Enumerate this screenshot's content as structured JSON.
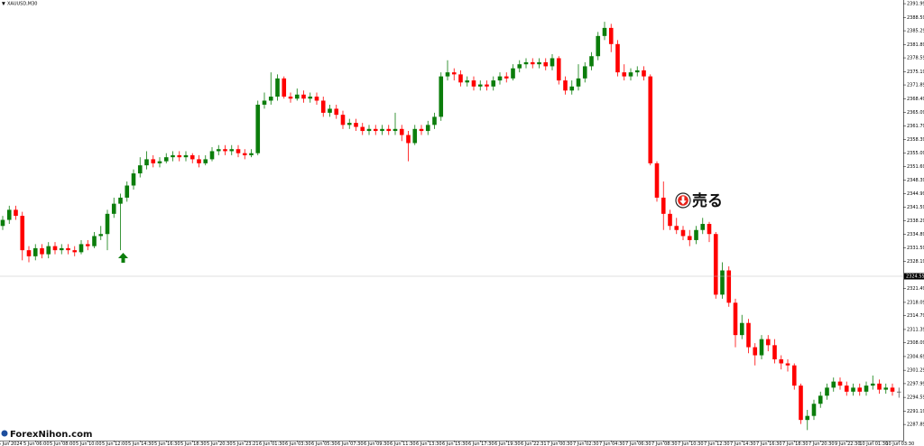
{
  "chart_data": {
    "type": "candlestick",
    "title": "XAUUSD,M30",
    "watermark": "ForexNihon.com",
    "annotation": "売る",
    "up_color": "#0b7d0b",
    "down_color": "#ff0000",
    "doji_color": "#555555",
    "ylim": [
      2283.9,
      2392.9
    ],
    "yticks": [
      {
        "value": 2391.99,
        "label": "2391.990"
      },
      {
        "value": 2388.59,
        "label": "2388.590"
      },
      {
        "value": 2385.29,
        "label": "2385.290"
      },
      {
        "value": 2381.89,
        "label": "2381.890"
      },
      {
        "value": 2378.59,
        "label": "2378.590"
      },
      {
        "value": 2375.19,
        "label": "2375.190"
      },
      {
        "value": 2371.89,
        "label": "2371.890"
      },
      {
        "value": 2368.49,
        "label": "2368.490"
      },
      {
        "value": 2365.09,
        "label": "2365.090"
      },
      {
        "value": 2361.79,
        "label": "2361.790"
      },
      {
        "value": 2358.39,
        "label": "2358.390"
      },
      {
        "value": 2355.09,
        "label": "2355.090"
      },
      {
        "value": 2351.69,
        "label": "2351.690"
      },
      {
        "value": 2348.39,
        "label": "2348.390"
      },
      {
        "value": 2344.99,
        "label": "2344.990"
      },
      {
        "value": 2341.59,
        "label": "2341.590"
      },
      {
        "value": 2338.29,
        "label": "2338.290"
      },
      {
        "value": 2334.89,
        "label": "2334.890"
      },
      {
        "value": 2331.59,
        "label": "2331.590"
      },
      {
        "value": 2328.19,
        "label": "2328.190"
      },
      {
        "value": 2321.49,
        "label": "2321.490"
      },
      {
        "value": 2318.09,
        "label": "2318.090"
      },
      {
        "value": 2314.79,
        "label": "2314.790"
      },
      {
        "value": 2311.39,
        "label": "2311.390"
      },
      {
        "value": 2308.09,
        "label": "2308.090"
      },
      {
        "value": 2304.69,
        "label": "2304.690"
      },
      {
        "value": 2301.29,
        "label": "2301.290"
      },
      {
        "value": 2297.99,
        "label": "2297.990"
      },
      {
        "value": 2294.59,
        "label": "2294.590"
      },
      {
        "value": 2291.19,
        "label": "2291.190"
      },
      {
        "value": 2287.89,
        "label": "2287.890"
      }
    ],
    "current_price": {
      "value": 2324.55,
      "label": "2324.550"
    },
    "categories": [
      null,
      "5 Jun 2024",
      null,
      null,
      null,
      "5 Jun 06:00",
      null,
      null,
      null,
      "5 Jun 08:00",
      null,
      null,
      null,
      "5 Jun 10:00",
      null,
      null,
      null,
      "5 Jun 12:00",
      null,
      null,
      null,
      "5 Jun 14:30",
      null,
      null,
      null,
      "5 Jun 16:30",
      null,
      null,
      null,
      "5 Jun 18:30",
      null,
      null,
      null,
      "5 Jun 20:30",
      null,
      null,
      null,
      "5 Jun 23:21",
      null,
      null,
      null,
      "6 Jun 01:30",
      null,
      null,
      null,
      "6 Jun 03:30",
      null,
      null,
      null,
      "6 Jun 05:30",
      null,
      null,
      null,
      "6 Jun 07:30",
      null,
      null,
      null,
      "6 Jun 09:30",
      null,
      null,
      null,
      "6 Jun 11:30",
      null,
      null,
      null,
      "6 Jun 13:30",
      null,
      null,
      null,
      "6 Jun 15:30",
      null,
      null,
      null,
      "6 Jun 17:30",
      null,
      null,
      null,
      "6 Jun 19:30",
      null,
      null,
      null,
      "6 Jun 22:31",
      null,
      null,
      null,
      "7 Jun 00:30",
      null,
      null,
      null,
      "7 Jun 02:30",
      null,
      null,
      null,
      "7 Jun 04:30",
      null,
      null,
      null,
      "7 Jun 06:30",
      null,
      null,
      null,
      "7 Jun 08:30",
      null,
      null,
      null,
      "7 Jun 10:30",
      null,
      null,
      null,
      "7 Jun 12:30",
      null,
      null,
      null,
      "7 Jun 14:30",
      null,
      null,
      null,
      "7 Jun 16:30",
      null,
      null,
      null,
      "7 Jun 18:30",
      null,
      null,
      null,
      "7 Jun 20:30",
      null,
      null,
      null,
      "9 Jun 22:30",
      null,
      null,
      null,
      "10 Jun 01:30",
      null,
      null,
      null,
      "10 Jun 03:30"
    ],
    "open": [
      2337,
      2338.5,
      2341,
      2339.5,
      2331,
      2329.5,
      2331.5,
      2330,
      2332,
      2331,
      2331.5,
      2331,
      2330.5,
      2332.5,
      2332,
      2334.5,
      2335,
      2340,
      2342.5,
      2344,
      2347,
      2350,
      2352,
      2353.5,
      2352.5,
      2353,
      2354,
      2354.5,
      2354,
      2354.5,
      2353.5,
      2352.5,
      2353.5,
      2355.5,
      2356,
      2355.5,
      2356,
      2355,
      2354.5,
      2355,
      2367,
      2368,
      2369,
      2373.5,
      2369,
      2368.5,
      2369.5,
      2368.5,
      2369,
      2368,
      2365,
      2366,
      2364.5,
      2362,
      2362.5,
      2361.5,
      2360.5,
      2361,
      2360.5,
      2361,
      2360.5,
      2361,
      2359.5,
      2357.5,
      2361,
      2360.5,
      2362,
      2364,
      2374,
      2375,
      2374.5,
      2372.5,
      2373,
      2371.5,
      2372,
      2371.5,
      2373,
      2374,
      2373.5,
      2376,
      2377,
      2377.5,
      2377,
      2377.5,
      2376.5,
      2378.5,
      2373,
      2370.5,
      2371.5,
      2373.5,
      2376.5,
      2379,
      2384,
      2386,
      2382,
      2375,
      2374,
      2375,
      2375.5,
      2374,
      2352.5,
      2344,
      2340,
      2337,
      2336,
      2334.5,
      2333.5,
      2336,
      2337.5,
      2335,
      2320,
      2326,
      2318,
      2310,
      2313,
      2307,
      2305,
      2309,
      2307.5,
      2304,
      2303,
      2302.5,
      2297.5,
      2289,
      2290,
      2293,
      2295,
      2297,
      2298.5,
      2297.5,
      2296,
      2297,
      2296,
      2297.5,
      2298,
      2296.5,
      2297,
      2296
    ],
    "high": [
      2339.5,
      2342,
      2342,
      2340.5,
      2332,
      2332.5,
      2332.5,
      2333,
      2333,
      2332.5,
      2332.5,
      2332,
      2333.5,
      2333.5,
      2335.5,
      2337,
      2341,
      2344,
      2345,
      2348,
      2351,
      2354,
      2355.5,
      2354.5,
      2354,
      2355,
      2355.5,
      2355.5,
      2355.5,
      2355,
      2354.5,
      2354.5,
      2356.5,
      2357,
      2357,
      2357,
      2357,
      2356,
      2356,
      2368,
      2370,
      2375,
      2374.5,
      2374,
      2370,
      2371,
      2370.5,
      2370,
      2370,
      2369,
      2367,
      2367,
      2365.5,
      2363.5,
      2363.5,
      2362.5,
      2362,
      2362,
      2362,
      2362,
      2365,
      2362,
      2360.5,
      2362,
      2362,
      2363,
      2365,
      2375,
      2378,
      2376,
      2375.5,
      2374,
      2374,
      2373,
      2373,
      2374,
      2375,
      2375,
      2377,
      2378,
      2378.5,
      2378.5,
      2378.5,
      2378.5,
      2379.5,
      2379,
      2374,
      2373,
      2377,
      2377.5,
      2380,
      2385,
      2387.5,
      2387,
      2383,
      2377,
      2376,
      2376.5,
      2376.5,
      2374.5,
      2353,
      2348,
      2341,
      2339,
      2337,
      2336,
      2337,
      2339,
      2338,
      2335.5,
      2328,
      2327,
      2319,
      2315,
      2314,
      2308,
      2310,
      2310,
      2309,
      2305,
      2304,
      2303,
      2298,
      2291.5,
      2294,
      2296,
      2298,
      2299.5,
      2299.5,
      2298.5,
      2298,
      2298,
      2298.5,
      2300,
      2299,
      2298,
      2298,
      2297
    ],
    "low": [
      2336,
      2337.5,
      2338.5,
      2328.5,
      2328,
      2328.5,
      2329,
      2329,
      2330,
      2330,
      2330,
      2329.5,
      2330,
      2331,
      2331.5,
      2333.5,
      2331,
      2339,
      2331,
      2343,
      2346,
      2349,
      2351,
      2351.5,
      2351.5,
      2352.5,
      2353,
      2353,
      2353,
      2352.5,
      2351.5,
      2352,
      2353,
      2354.5,
      2354.5,
      2354.5,
      2354,
      2353.5,
      2354,
      2354.5,
      2366,
      2367,
      2368,
      2368.5,
      2367.5,
      2368,
      2367.5,
      2367.5,
      2367,
      2364,
      2364,
      2363.5,
      2361,
      2361,
      2360.5,
      2359.5,
      2359.5,
      2359.5,
      2359.5,
      2359.5,
      2359.5,
      2358,
      2353,
      2357,
      2359.5,
      2359.5,
      2361,
      2363,
      2373,
      2373,
      2371.5,
      2371.5,
      2370.5,
      2370.5,
      2370.5,
      2370.5,
      2372,
      2372.5,
      2373,
      2375,
      2376,
      2376,
      2376,
      2375.5,
      2375.5,
      2372,
      2369.5,
      2369.5,
      2370.5,
      2372.5,
      2375.5,
      2378,
      2383,
      2380,
      2374,
      2373,
      2373,
      2374,
      2373,
      2352,
      2343,
      2336,
      2336,
      2335,
      2333.5,
      2332,
      2332.5,
      2335,
      2333,
      2319,
      2319,
      2317,
      2307,
      2309,
      2305.5,
      2302.5,
      2304,
      2306,
      2303,
      2301.5,
      2301,
      2296.5,
      2288,
      2286.5,
      2289,
      2292,
      2294,
      2296,
      2296.5,
      2295,
      2295,
      2295,
      2295,
      2296.5,
      2295.5,
      2295.5,
      2295,
      2294.5
    ],
    "close": [
      2338.5,
      2341,
      2339.5,
      2331,
      2329.5,
      2331.5,
      2330,
      2332,
      2331,
      2331.5,
      2331,
      2330.5,
      2332.5,
      2332,
      2334.5,
      2335,
      2340,
      2342.5,
      2344,
      2347,
      2350,
      2352,
      2353.5,
      2352.5,
      2353,
      2354,
      2354.5,
      2354,
      2354.5,
      2353.5,
      2352.5,
      2353.5,
      2355.5,
      2356,
      2355.5,
      2356,
      2355,
      2354.5,
      2355,
      2367,
      2368,
      2369,
      2373.5,
      2369,
      2368.5,
      2369.5,
      2368.5,
      2369,
      2368,
      2365,
      2366,
      2364.5,
      2362,
      2362.5,
      2361.5,
      2360.5,
      2361,
      2360.5,
      2361,
      2360.5,
      2361,
      2359.5,
      2357.5,
      2361,
      2360.5,
      2362,
      2364,
      2374,
      2375,
      2374.5,
      2372.5,
      2373,
      2371.5,
      2372,
      2371.5,
      2373,
      2374,
      2373.5,
      2376,
      2377,
      2377.5,
      2377,
      2377.5,
      2376.5,
      2378.5,
      2373,
      2370.5,
      2371.5,
      2373.5,
      2376.5,
      2379,
      2384,
      2386,
      2382,
      2375,
      2374,
      2375,
      2375.5,
      2374,
      2352.5,
      2344,
      2340,
      2337,
      2336,
      2334.5,
      2333.5,
      2336,
      2337.5,
      2335,
      2320,
      2326,
      2318,
      2310,
      2313,
      2307,
      2305,
      2309,
      2307.5,
      2304,
      2303,
      2302.5,
      2297.5,
      2289,
      2290,
      2293,
      2295,
      2297,
      2298.5,
      2297.5,
      2296,
      2297,
      2296,
      2297.5,
      2298,
      2296.5,
      2297,
      2296,
      2296
    ]
  }
}
